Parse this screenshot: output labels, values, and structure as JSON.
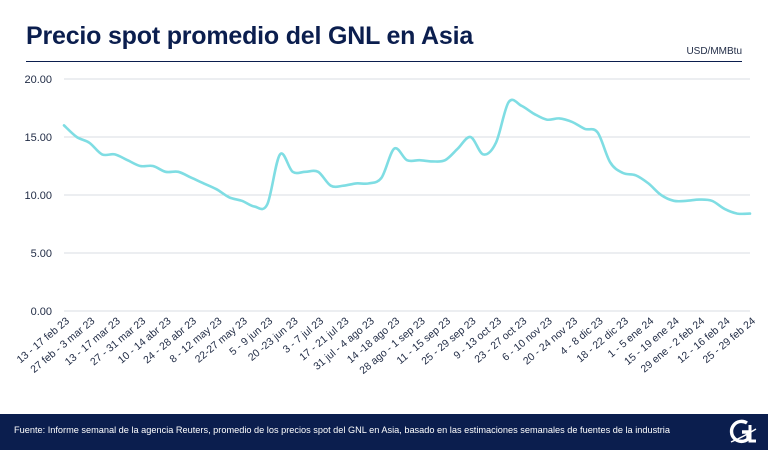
{
  "chart_data": {
    "type": "line",
    "title": "Precio spot promedio del GNL en Asia",
    "unit": "USD/MMBtu",
    "ylim": [
      0,
      20
    ],
    "yticks": [
      "0.00",
      "5.00",
      "10.00",
      "15.00",
      "20.00"
    ],
    "grid": true,
    "line_color": "#7fdde3",
    "x_labels": [
      "13 - 17 feb 23",
      "27 feb - 3 mar 23",
      "13 - 17 mar 23",
      "27 - 31 mar 23",
      "10 - 14 abr 23",
      "24 - 28 abr 23",
      "8 - 12 may 23",
      "22-27 may 23",
      "5 - 9 jun 23",
      "20 -23 jun 23",
      "3 - 7 jul 23",
      "17 - 21 jul 23",
      "31 jul - 4 ago 23",
      "14 -18 ago 23",
      "28 ago - 1 sep 23",
      "11 - 15 sep 23",
      "25 - 29 sep 23",
      "9 - 13 oct 23",
      "23 - 27 oct 23",
      "6 - 10 nov 23",
      "20 - 24 nov 23",
      "4 - 8 dic 23",
      "18 - 22 dic 23",
      "1 - 5 ene 24",
      "15 - 19 ene 24",
      "29 ene - 2 feb 24",
      "12 - 16 feb 24",
      "25 - 29 feb 24"
    ],
    "series": [
      {
        "values": [
          16.0,
          15.0,
          14.5,
          13.5,
          13.5,
          13.0,
          12.5,
          12.5,
          12.0,
          12.0,
          11.5,
          11.0,
          10.5,
          9.8,
          9.5,
          9.0,
          9.2,
          13.5,
          12.0,
          12.0,
          12.0,
          10.8,
          10.8,
          11.0,
          11.0,
          11.5,
          14.0,
          13.0,
          13.0,
          12.9,
          13.0,
          14.0,
          15.0,
          13.5,
          14.5,
          18.0,
          17.7,
          17.0,
          16.5,
          16.6,
          16.3,
          15.7,
          15.4,
          12.8,
          11.9,
          11.7,
          11.0,
          10.0,
          9.5,
          9.5,
          9.6,
          9.5,
          8.8,
          8.4,
          8.4
        ]
      }
    ]
  },
  "footer": {
    "source": "Fuente: Informe semanal de la agencia Reuters, promedio de los precios spot del GNL en Asia, basado en las estimaciones semanales de fuentes de la industria",
    "logo_text": "GNL Global"
  }
}
